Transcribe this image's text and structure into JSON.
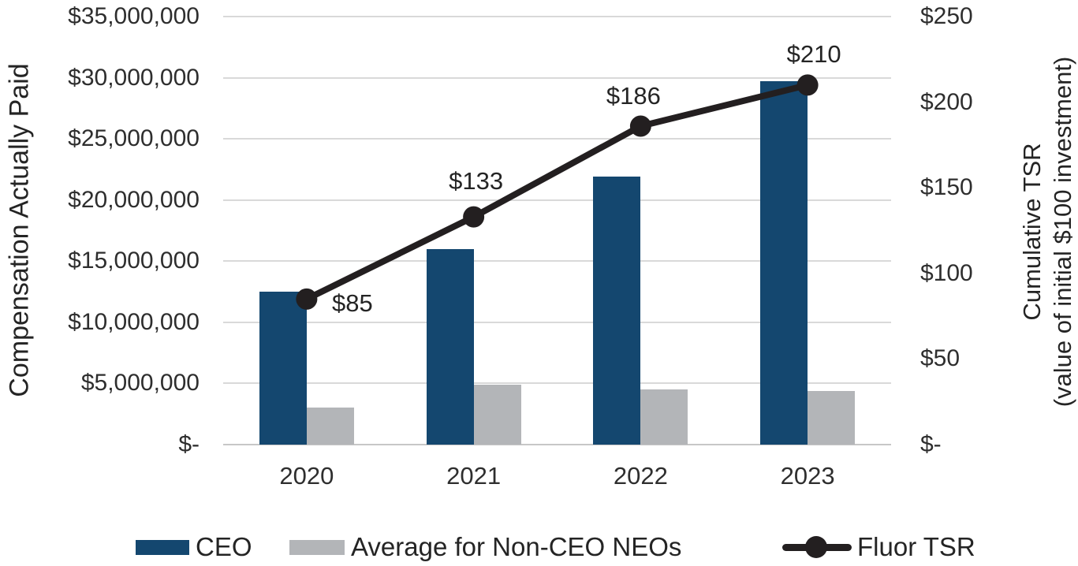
{
  "chart_data": {
    "type": "bar",
    "subtype": "combo-bar-line-dual-axis",
    "categories": [
      "2020",
      "2021",
      "2022",
      "2023"
    ],
    "series": [
      {
        "name": "CEO",
        "render": "bar",
        "axis": "left",
        "color": "#14476F",
        "values": [
          12500000,
          16000000,
          21900000,
          29700000
        ]
      },
      {
        "name": "Average for Non-CEO NEOs",
        "render": "bar",
        "axis": "left",
        "color": "#B3B5B8",
        "values": [
          3000000,
          4900000,
          4500000,
          4400000
        ]
      },
      {
        "name": "Fluor TSR",
        "render": "line",
        "axis": "right",
        "color": "#231F20",
        "values": [
          85,
          133,
          186,
          210
        ],
        "point_labels": [
          "$85",
          "$133",
          "$186",
          "$210"
        ]
      }
    ],
    "left_axis": {
      "title": "Compensation Actually Paid",
      "min": 0,
      "max": 35000000,
      "tick_step": 5000000,
      "tick_labels_top_to_bottom": [
        "$35,000,000",
        "$30,000,000",
        "$25,000,000",
        "$20,000,000",
        "$15,000,000",
        "$10,000,000",
        "$5,000,000",
        "$-"
      ]
    },
    "right_axis": {
      "title_line1": "Cumulative TSR",
      "title_line2": "(value of initial $100 investment)",
      "min": 0,
      "max": 250,
      "tick_step": 50,
      "tick_labels_top_to_bottom": [
        "$250",
        "$200",
        "$150",
        "$100",
        "$50",
        "$-"
      ]
    },
    "grid": true,
    "legend_position": "bottom",
    "colors": {
      "ceo_bar": "#14476F",
      "neo_bar": "#B3B5B8",
      "tsr_line": "#231F20",
      "gridline": "#D9D9D9",
      "axis_line": "#C7C7C7",
      "text": "#2E2E2E"
    }
  }
}
